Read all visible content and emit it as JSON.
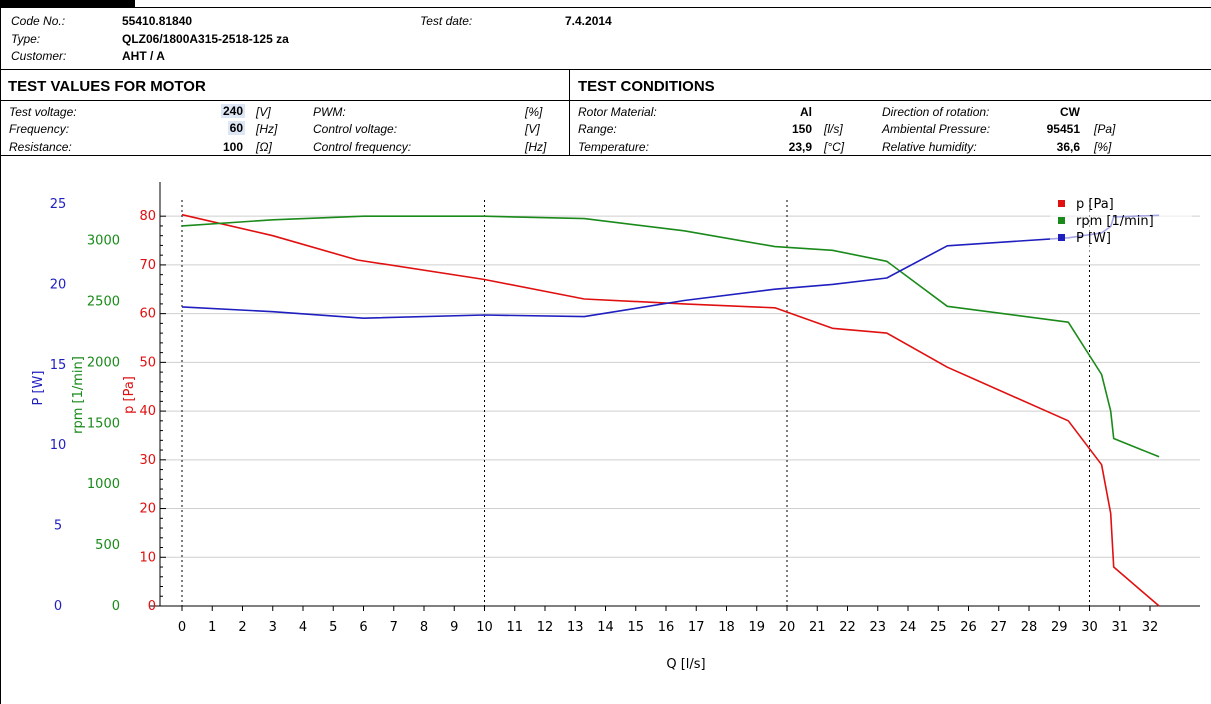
{
  "header": {
    "code_label": "Code No.:",
    "code_value": "55410.81840",
    "type_label": "Type:",
    "type_value": "QLZ06/1800A315-2518-125 za",
    "customer_label": "Customer:",
    "customer_value": "AHT / A",
    "test_date_label": "Test date:",
    "test_date_value": "7.4.2014"
  },
  "motor": {
    "title": "TEST VALUES FOR MOTOR",
    "rows": [
      {
        "label": "Test voltage:",
        "value": "240",
        "unit": "[V]",
        "label2": "PWM:",
        "unit2": "[%]"
      },
      {
        "label": "Frequency:",
        "value": "60",
        "unit": "[Hz]",
        "label2": "Control voltage:",
        "unit2": "[V]"
      },
      {
        "label": "Resistance:",
        "value": "100",
        "unit": "[Ω]",
        "label2": "Control frequency:",
        "unit2": "[Hz]"
      }
    ]
  },
  "conditions": {
    "title": "TEST CONDITIONS",
    "rows": [
      {
        "label": "Rotor Material:",
        "value": "Al",
        "unit": "",
        "label2": "Direction of rotation:",
        "value2": "CW",
        "unit2": ""
      },
      {
        "label": "Range:",
        "value": "150",
        "unit": "[l/s]",
        "label2": "Ambiental Pressure:",
        "value2": "95451",
        "unit2": "[Pa]"
      },
      {
        "label": "Temperature:",
        "value": "23,9",
        "unit": "[°C]",
        "label2": "Relative humidity:",
        "value2": "36,6",
        "unit2": "[%]"
      }
    ]
  },
  "chart_data": {
    "type": "line",
    "xlabel": "Q [l/s]",
    "xlim": [
      0,
      32
    ],
    "x_ticks": [
      0,
      1,
      2,
      3,
      4,
      5,
      6,
      7,
      8,
      9,
      10,
      11,
      12,
      13,
      14,
      15,
      16,
      17,
      18,
      19,
      20,
      21,
      22,
      23,
      24,
      25,
      26,
      27,
      28,
      29,
      30,
      31,
      32
    ],
    "vertical_dotted_lines": [
      0,
      10,
      20,
      30
    ],
    "axes": [
      {
        "key": "P",
        "label": "P [W]",
        "color": "#1f1fbf",
        "ylim": [
          0,
          25
        ],
        "ticks": [
          0,
          5,
          10,
          15,
          20,
          25
        ]
      },
      {
        "key": "rpm",
        "label": "rpm [1/min]",
        "color": "#1a8a1a",
        "ylim": [
          0,
          3300
        ],
        "ticks": [
          0,
          500,
          1000,
          1500,
          2000,
          2500,
          3000
        ]
      },
      {
        "key": "p",
        "label": "p [Pa]",
        "color": "#e01010",
        "ylim": [
          0,
          82.5
        ],
        "ticks": [
          0,
          10,
          20,
          30,
          40,
          50,
          60,
          70,
          80
        ]
      }
    ],
    "grid_y": [
      10,
      20,
      30,
      40,
      50,
      60,
      70,
      80
    ],
    "legend_position": "top-right",
    "legend": [
      {
        "name": "p [Pa]",
        "color": "#e01010"
      },
      {
        "name": "rpm [1/min]",
        "color": "#1a8a1a"
      },
      {
        "name": "P [W]",
        "color": "#1f1fbf"
      }
    ],
    "series": [
      {
        "name": "p [Pa]",
        "axis": "p",
        "color": "#e01010",
        "x": [
          0,
          3,
          5.8,
          10,
          13.3,
          16.6,
          19.6,
          21.5,
          23.3,
          25.3,
          29.3,
          30.4,
          30.7,
          30.8,
          32.3
        ],
        "y": [
          80.3,
          76,
          71,
          67,
          63,
          62,
          61.2,
          57,
          56,
          49,
          38,
          29,
          19,
          8,
          0
        ]
      },
      {
        "name": "rpm [1/min]",
        "axis": "rpm",
        "color": "#1a8a1a",
        "x": [
          0,
          3,
          6,
          10,
          13.3,
          16.6,
          19.6,
          21.5,
          23.3,
          25.3,
          29.3,
          30.4,
          30.7,
          30.8,
          32.3
        ],
        "y": [
          3120,
          3170,
          3200,
          3200,
          3180,
          3080,
          2950,
          2920,
          2830,
          2460,
          2330,
          1900,
          1600,
          1375,
          1225
        ]
      },
      {
        "name": "P [W]",
        "axis": "P",
        "color": "#1f1fbf",
        "x": [
          0,
          3,
          6,
          10,
          13.3,
          16.6,
          19.6,
          21.5,
          23.3,
          25.3,
          29.3,
          30.4,
          30.7,
          30.8,
          32.3
        ],
        "y": [
          18.6,
          18.3,
          17.9,
          18.1,
          18.0,
          19.0,
          19.7,
          20.0,
          20.4,
          22.4,
          22.9,
          23.2,
          23.6,
          24.2,
          24.3
        ]
      }
    ]
  }
}
